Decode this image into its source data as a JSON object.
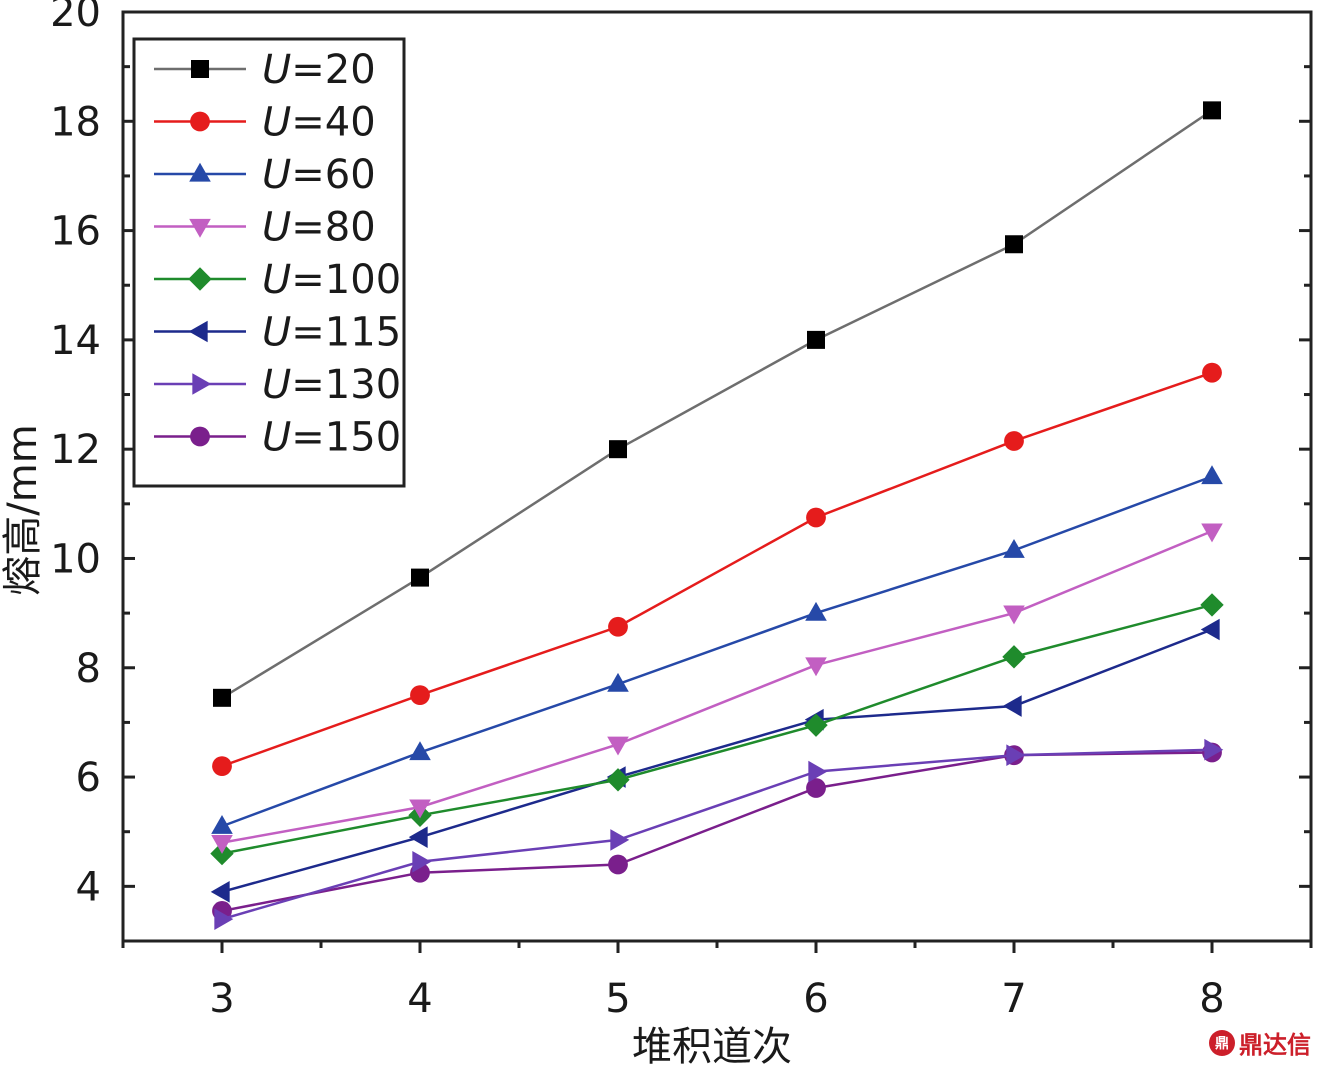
{
  "chart_data": {
    "type": "line",
    "xlabel": "堆积道次",
    "ylabel": "熔高/mm",
    "x": [
      3,
      4,
      5,
      6,
      7,
      8
    ],
    "xlim": [
      2.5,
      8.5
    ],
    "ylim": [
      3,
      20
    ],
    "xticks": [
      "3",
      "4",
      "5",
      "6",
      "7",
      "8"
    ],
    "yticks": [
      "4",
      "6",
      "8",
      "10",
      "12",
      "14",
      "16",
      "18",
      "20"
    ],
    "grid": false,
    "legend_position": "top-left",
    "series": [
      {
        "name_var": "U",
        "name_val": "=20",
        "color": "#000000",
        "line_color": "#6e6e6e",
        "marker": "square",
        "values": [
          7.45,
          9.65,
          12.0,
          14.0,
          15.75,
          18.2
        ]
      },
      {
        "name_var": "U",
        "name_val": "=40",
        "color": "#e51c1c",
        "line_color": "#e51c1c",
        "marker": "circle",
        "values": [
          6.2,
          7.5,
          8.75,
          10.75,
          12.15,
          13.4
        ]
      },
      {
        "name_var": "U",
        "name_val": "=60",
        "color": "#2649a8",
        "line_color": "#2649a8",
        "marker": "triangle-up",
        "values": [
          5.1,
          6.45,
          7.7,
          9.0,
          10.15,
          11.5
        ]
      },
      {
        "name_var": "U",
        "name_val": "=80",
        "color": "#c25fc2",
        "line_color": "#c25fc2",
        "marker": "triangle-down",
        "values": [
          4.8,
          5.45,
          6.6,
          8.05,
          9.0,
          10.5
        ]
      },
      {
        "name_var": "U",
        "name_val": "=100",
        "color": "#1f8b2c",
        "line_color": "#1f8b2c",
        "marker": "diamond",
        "values": [
          4.6,
          5.3,
          5.95,
          6.95,
          8.2,
          9.15
        ]
      },
      {
        "name_var": "U",
        "name_val": "=115",
        "color": "#1d2a8c",
        "line_color": "#1d2a8c",
        "marker": "triangle-left",
        "values": [
          3.9,
          4.9,
          6.0,
          7.05,
          7.3,
          8.7
        ]
      },
      {
        "name_var": "U",
        "name_val": "=130",
        "color": "#6a3fb5",
        "line_color": "#6a3fb5",
        "marker": "triangle-right",
        "values": [
          3.4,
          4.45,
          4.85,
          6.1,
          6.4,
          6.5
        ]
      },
      {
        "name_var": "U",
        "name_val": "=150",
        "color": "#7a1f8c",
        "line_color": "#7a1f8c",
        "marker": "circle",
        "values": [
          3.55,
          4.25,
          4.4,
          5.8,
          6.4,
          6.45
        ]
      }
    ]
  },
  "watermark": {
    "badge": "鼎",
    "text": "鼎达信"
  }
}
